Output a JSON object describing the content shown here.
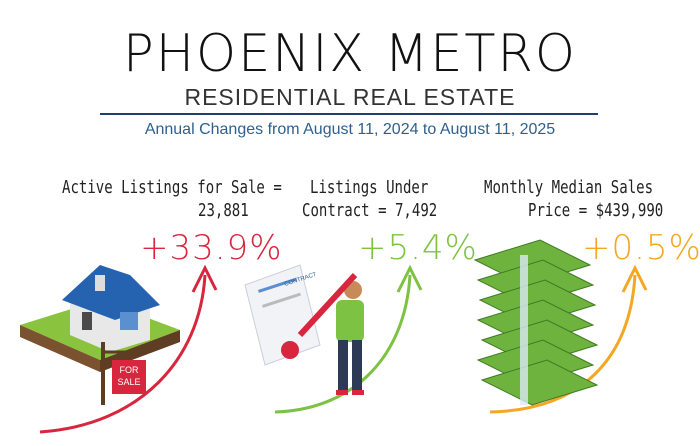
{
  "header": {
    "title": "PHOENIX METRO",
    "subtitle": "RESIDENTIAL REAL ESTATE",
    "period": "Annual Changes from August 11, 2024 to August 11, 2025"
  },
  "stats": [
    {
      "label_line1": "Active Listings for Sale =",
      "label_line2": "23,881",
      "change": "+33.9%",
      "color": "#d7263d",
      "icon": "house-icon",
      "sign_text": "FOR SALE"
    },
    {
      "label_line1": "Listings Under",
      "label_line2": "Contract = 7,492",
      "change": "+5.4%",
      "color": "#7dc242",
      "icon": "contract-signing-icon",
      "doc_text": "CONTRACT"
    },
    {
      "label_line1": "Monthly Median  Sales",
      "label_line2": "Price = $439,990",
      "change": "+0.5%",
      "color": "#f5a623",
      "icon": "money-stack-icon"
    }
  ]
}
